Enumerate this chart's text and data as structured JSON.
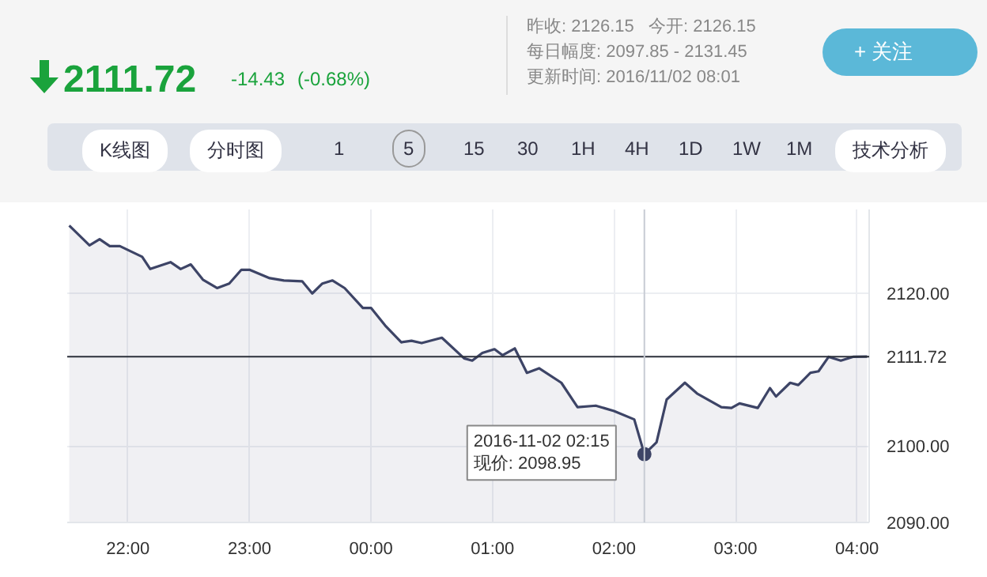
{
  "chart_data": {
    "type": "area",
    "x": [
      "2016-11-01T21:31",
      "2016-11-01T21:41",
      "2016-11-01T21:46",
      "2016-11-01T21:51",
      "2016-11-01T21:56",
      "2016-11-01T22:07",
      "2016-11-01T22:11",
      "2016-11-01T22:21",
      "2016-11-01T22:26",
      "2016-11-01T22:31",
      "2016-11-01T22:37",
      "2016-11-01T22:44",
      "2016-11-01T22:50",
      "2016-11-01T22:56",
      "2016-11-01T23:00",
      "2016-11-01T23:10",
      "2016-11-01T23:17",
      "2016-11-01T23:26",
      "2016-11-01T23:31",
      "2016-11-01T23:36",
      "2016-11-01T23:41",
      "2016-11-01T23:47",
      "2016-11-01T23:56",
      "2016-11-02T00:00",
      "2016-11-02T00:07",
      "2016-11-02T00:15",
      "2016-11-02T00:20",
      "2016-11-02T00:25",
      "2016-11-02T00:35",
      "2016-11-02T00:46",
      "2016-11-02T00:50",
      "2016-11-02T00:55",
      "2016-11-02T01:01",
      "2016-11-02T01:05",
      "2016-11-02T01:11",
      "2016-11-02T01:17",
      "2016-11-02T01:23",
      "2016-11-02T01:34",
      "2016-11-02T01:42",
      "2016-11-02T01:51",
      "2016-11-02T02:00",
      "2016-11-02T02:10",
      "2016-11-02T02:15",
      "2016-11-02T02:21",
      "2016-11-02T02:26",
      "2016-11-02T02:35",
      "2016-11-02T02:41",
      "2016-11-02T02:53",
      "2016-11-02T02:58",
      "2016-11-02T03:02",
      "2016-11-02T03:11",
      "2016-11-02T03:17",
      "2016-11-02T03:20",
      "2016-11-02T03:27",
      "2016-11-02T03:31",
      "2016-11-02T03:37",
      "2016-11-02T03:41",
      "2016-11-02T03:46",
      "2016-11-02T03:52",
      "2016-11-02T03:58",
      "2016-11-02T04:05"
    ],
    "series": [
      {
        "color": "#3d4466",
        "values": [
          2128.9,
          2126.3,
          2127.1,
          2126.2,
          2126.2,
          2124.8,
          2123.2,
          2124.1,
          2123.2,
          2123.8,
          2121.8,
          2120.7,
          2121.3,
          2123.1,
          2123.1,
          2122.0,
          2121.7,
          2121.6,
          2120.0,
          2121.3,
          2121.7,
          2120.7,
          2118.1,
          2118.1,
          2115.8,
          2113.6,
          2113.8,
          2113.5,
          2114.2,
          2111.5,
          2111.2,
          2112.2,
          2112.7,
          2111.9,
          2112.8,
          2109.6,
          2110.2,
          2108.3,
          2105.1,
          2105.3,
          2104.6,
          2103.5,
          2098.95,
          2100.5,
          2106.1,
          2108.3,
          2106.9,
          2105.1,
          2105.0,
          2105.6,
          2105.0,
          2107.6,
          2106.5,
          2108.3,
          2108.0,
          2109.6,
          2109.8,
          2111.7,
          2111.2,
          2111.7,
          2111.72
        ]
      }
    ],
    "xlim": [
      "2016-11-01T21:30",
      "2016-11-02T04:06"
    ],
    "xticks": [
      {
        "value": "2016-11-01T22:00",
        "label": "22:00"
      },
      {
        "value": "2016-11-01T23:00",
        "label": "23:00"
      },
      {
        "value": "2016-11-02T00:00",
        "label": "00:00"
      },
      {
        "value": "2016-11-02T01:00",
        "label": "01:00"
      },
      {
        "value": "2016-11-02T02:00",
        "label": "02:00"
      },
      {
        "value": "2016-11-02T03:00",
        "label": "03:00"
      },
      {
        "value": "2016-11-02T04:00",
        "label": "04:00"
      }
    ],
    "ylim": [
      2090,
      2131
    ],
    "yticks": [
      {
        "value": 2090,
        "label": "2090.00"
      },
      {
        "value": 2100,
        "label": "2100.00"
      },
      {
        "value": 2120,
        "label": "2120.00"
      }
    ],
    "grid": true,
    "ref_lines": [
      {
        "axis": "y",
        "value": 2111.72,
        "label": "2111.72",
        "color": "#2b2f3a"
      },
      {
        "axis": "x",
        "value": "2016-11-02T02:15",
        "color": "#c8ccd4"
      }
    ],
    "annotations": [
      "2111.72",
      "-14.43",
      "(-0.68%)",
      "昨收: 2126.15",
      "今开: 2126.15",
      "每日幅度: 2097.85 - 2131.45",
      "更新时间: 2016/11/02 08:01",
      "+ 关注",
      "K线图",
      "分时图",
      "15",
      "30",
      "1H",
      "4H",
      "1D",
      "1W",
      "1M",
      "技术分析",
      "1",
      "5",
      {
        "text": "2016-11-02 02:15\n现价:  2098.95",
        "x": "2016-11-02T02:15",
        "y": 2098.95
      }
    ]
  }
}
